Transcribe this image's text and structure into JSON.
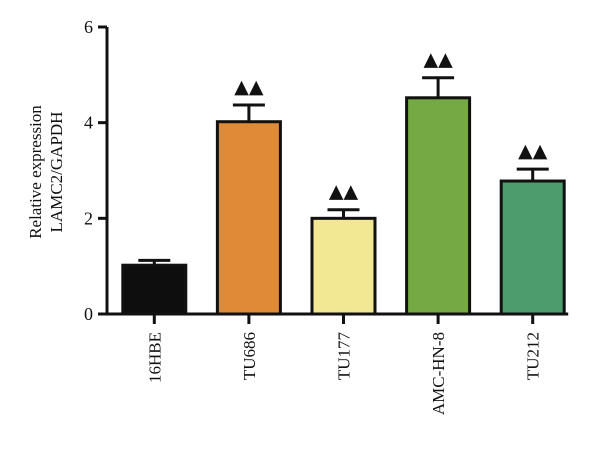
{
  "chart_data": {
    "type": "bar",
    "ylabel_lines": [
      "Relative expression",
      "LAMC2/GAPDH"
    ],
    "ylim": [
      0,
      6
    ],
    "yticks": [
      "0",
      "2",
      "4",
      "6"
    ],
    "categories": [
      "16HBE",
      "TU686",
      "TU177",
      "AMC-HN-8",
      "TU212"
    ],
    "values": [
      1.02,
      4.02,
      2.0,
      4.52,
      2.78
    ],
    "errors": [
      0.1,
      0.35,
      0.18,
      0.42,
      0.25
    ],
    "significance": [
      "",
      "▲▲",
      "▲▲",
      "▲▲",
      "▲▲"
    ],
    "colors": [
      "#0e0e0e",
      "#de8a36",
      "#f2e893",
      "#75a944",
      "#4d9c6e"
    ],
    "grid": false
  }
}
